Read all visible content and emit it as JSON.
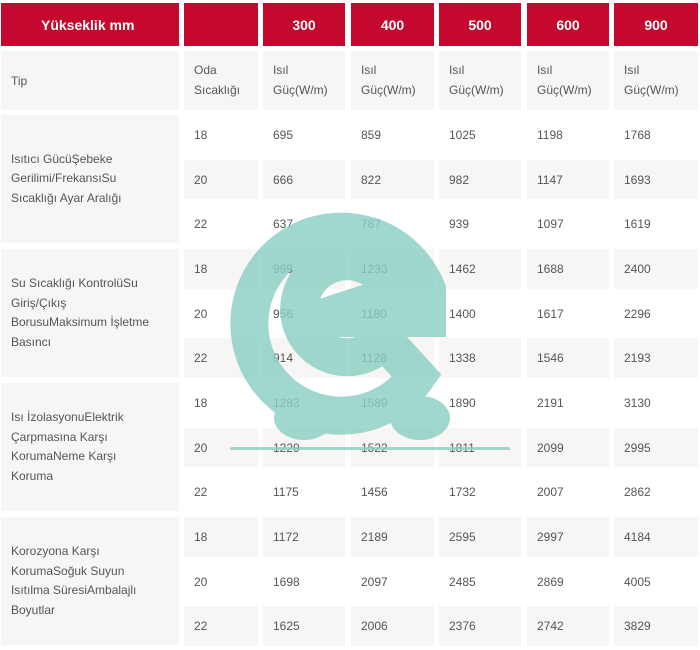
{
  "table": {
    "header": [
      "Yükseklik mm",
      "",
      "300",
      "400",
      "500",
      "600",
      "900"
    ],
    "subheader": {
      "type_label": "Tip",
      "room_temp_label": "Oda\nSıcaklığı",
      "power_labels": [
        "Isıl\nGüç(W/m)",
        "Isıl\nGüç(W/m)",
        "Isıl\nGüç(W/m)",
        "Isıl\nGüç(W/m)",
        "Isıl\nGüç(W/m)"
      ]
    },
    "groups": [
      {
        "label": "Isıtıcı GücüŞebeke\nGerilimi/FrekansıSu\nSıcaklığı Ayar Aralığı",
        "rows": [
          {
            "temp": "18",
            "values": [
              "695",
              "859",
              "1025",
              "1198",
              "1768"
            ]
          },
          {
            "temp": "20",
            "values": [
              "666",
              "822",
              "982",
              "1147",
              "1693"
            ]
          },
          {
            "temp": "22",
            "values": [
              "637",
              "787",
              "939",
              "1097",
              "1619"
            ]
          }
        ]
      },
      {
        "label": "Su Sıcaklığı KontrolüSu\nGiriş/Çıkış\nBorusuMaksimum İşletme\nBasıncı",
        "rows": [
          {
            "temp": "18",
            "values": [
              "999",
              "1233",
              "1462",
              "1688",
              "2400"
            ]
          },
          {
            "temp": "20",
            "values": [
              "956",
              "1180",
              "1400",
              "1617",
              "2296"
            ]
          },
          {
            "temp": "22",
            "values": [
              "914",
              "1128",
              "1338",
              "1546",
              "2193"
            ]
          }
        ]
      },
      {
        "label": "Isı İzolasyonuElektrik\nÇarpmasına Karşı\nKorumaNeme Karşı\nKoruma",
        "rows": [
          {
            "temp": "18",
            "values": [
              "1283",
              "1589",
              "1890",
              "2191",
              "3130"
            ]
          },
          {
            "temp": "20",
            "values": [
              "1229",
              "1522",
              "1811",
              "2099",
              "2995"
            ]
          },
          {
            "temp": "22",
            "values": [
              "1175",
              "1456",
              "1732",
              "2007",
              "2862"
            ]
          }
        ]
      },
      {
        "label": "Korozyona Karşı\nKorumaSoğuk Suyun\nIsıtılma SüresiAmbalajlı\nBoyutlar",
        "rows": [
          {
            "temp": "18",
            "values": [
              "1172",
              "2189",
              "2595",
              "2997",
              "4184"
            ]
          },
          {
            "temp": "20",
            "values": [
              "1698",
              "2097",
              "2485",
              "2869",
              "4005"
            ]
          },
          {
            "temp": "22",
            "values": [
              "1625",
              "2006",
              "2376",
              "2742",
              "3829"
            ]
          }
        ]
      }
    ]
  },
  "watermark": {
    "icon": "e-letter-logo",
    "color": "#8ccfc4"
  }
}
